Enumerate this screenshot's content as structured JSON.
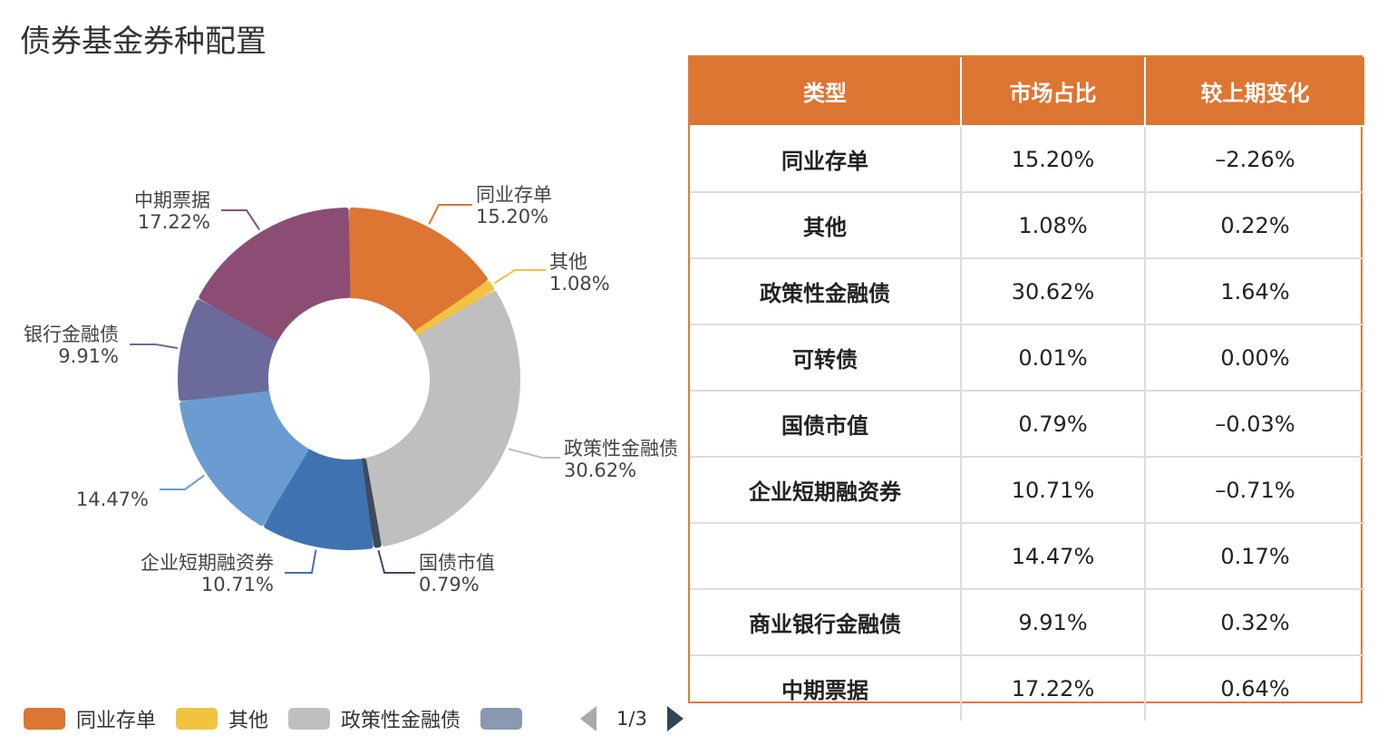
{
  "title": "债券基金券种配置",
  "chart_data": {
    "type": "pie",
    "subtype": "donut",
    "slices": [
      {
        "label": "同业存单",
        "value": 15.2,
        "display": "15.20%",
        "color": "#dd7533"
      },
      {
        "label": "其他",
        "value": 1.08,
        "display": "1.08%",
        "color": "#f2c341"
      },
      {
        "label": "政策性金融债",
        "value": 30.62,
        "display": "30.62%",
        "color": "#bfbfbf"
      },
      {
        "label": "国债市值",
        "value": 0.79,
        "display": "0.79%",
        "color": "#3d4b5c"
      },
      {
        "label": "企业短期融资券",
        "value": 10.71,
        "display": "10.71%",
        "color": "#3f72b0"
      },
      {
        "label": "",
        "value": 14.47,
        "display": "14.47%",
        "color": "#6a9bd1"
      },
      {
        "label": "银行金融债",
        "value": 9.91,
        "display": "9.91%",
        "color": "#6a6b9a"
      },
      {
        "label": "中期票据",
        "value": 17.22,
        "display": "17.22%",
        "color": "#8c4d75"
      }
    ],
    "legend": {
      "position": "bottom-left",
      "items": [
        {
          "label": "同业存单",
          "color": "#dd7533"
        },
        {
          "label": "其他",
          "color": "#f2c341"
        },
        {
          "label": "政策性金融债",
          "color": "#bfbfbf"
        },
        {
          "label": "",
          "color": "#8a98b0"
        }
      ],
      "page": "1/3"
    }
  },
  "table": {
    "headers": [
      "类型",
      "市场占比",
      "较上期变化"
    ],
    "rows": [
      [
        "同业存单",
        "15.20%",
        "–2.26%"
      ],
      [
        "其他",
        "1.08%",
        "0.22%"
      ],
      [
        "政策性金融债",
        "30.62%",
        "1.64%"
      ],
      [
        "可转债",
        "0.01%",
        "0.00%"
      ],
      [
        "国债市值",
        "0.79%",
        "–0.03%"
      ],
      [
        "企业短期融资券",
        "10.71%",
        "–0.71%"
      ],
      [
        "",
        "14.47%",
        "0.17%"
      ],
      [
        "商业银行金融债",
        "9.91%",
        "0.32%"
      ],
      [
        "中期票据",
        "17.22%",
        "0.64%"
      ]
    ]
  }
}
